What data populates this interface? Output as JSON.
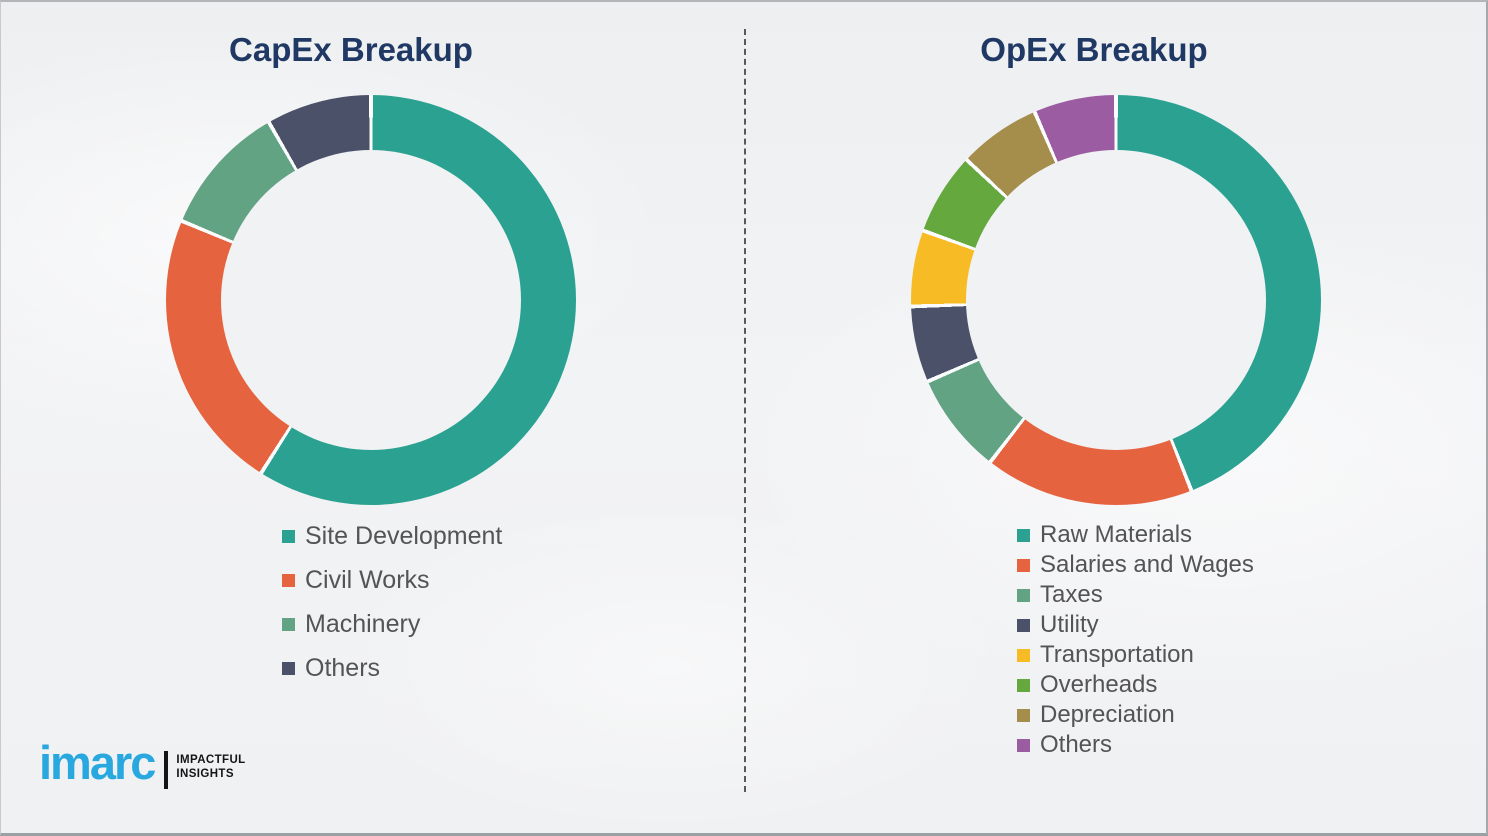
{
  "chart_data": [
    {
      "type": "pie",
      "subtype": "donut",
      "title": "CapEx Breakup",
      "categories": [
        "Site Development",
        "Civil Works",
        "Machinery",
        "Others"
      ],
      "values": [
        59,
        22.3,
        10.4,
        8.3
      ],
      "colors": [
        "#2AA191",
        "#E5643F",
        "#62A384",
        "#4A5168"
      ],
      "unit": "percent-estimated",
      "data_labels": false,
      "legend_position": "below-left"
    },
    {
      "type": "pie",
      "subtype": "donut",
      "title": "OpEx Breakup",
      "categories": [
        "Raw Materials",
        "Salaries and Wages",
        "Taxes",
        "Utility",
        "Transportation",
        "Overheads",
        "Depreciation",
        "Others"
      ],
      "values": [
        44,
        16.5,
        8,
        6,
        6,
        6.5,
        6.5,
        6.5
      ],
      "colors": [
        "#2AA191",
        "#E5643F",
        "#62A384",
        "#4A5168",
        "#F7BC25",
        "#64A83E",
        "#A58D4C",
        "#9C5CA1"
      ],
      "unit": "percent-estimated",
      "data_labels": false,
      "legend_position": "below-left"
    }
  ],
  "logo": {
    "brand": "imarc",
    "tagline": [
      "IMPACTFUL",
      "INSIGHTS"
    ],
    "brand_color": "#29A8E0"
  },
  "title_color": "#203864"
}
